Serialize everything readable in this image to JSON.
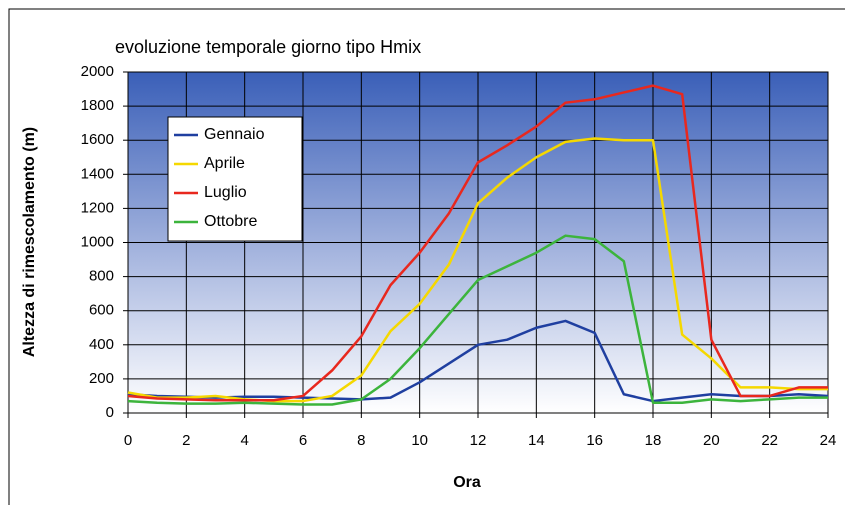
{
  "chart_data": {
    "type": "line",
    "title": "evoluzione temporale giorno tipo Hmix",
    "xlabel": "Ora",
    "ylabel": "Altezza di rimescolamento (m)",
    "x": [
      0,
      1,
      2,
      3,
      4,
      5,
      6,
      7,
      8,
      9,
      10,
      11,
      12,
      13,
      14,
      15,
      16,
      17,
      18,
      19,
      20,
      21,
      22,
      23,
      24
    ],
    "series": [
      {
        "name": "Gennaio",
        "color": "#1f3fa0",
        "values": [
          110,
          100,
          95,
          90,
          95,
          95,
          90,
          85,
          80,
          90,
          180,
          290,
          400,
          430,
          500,
          540,
          470,
          110,
          70,
          90,
          110,
          100,
          100,
          110,
          100
        ]
      },
      {
        "name": "Aprile",
        "color": "#f5d800",
        "values": [
          120,
          90,
          90,
          100,
          80,
          70,
          70,
          100,
          220,
          480,
          640,
          870,
          1230,
          1380,
          1500,
          1590,
          1610,
          1600,
          1600,
          460,
          320,
          150,
          150,
          140,
          140
        ]
      },
      {
        "name": "Luglio",
        "color": "#e8281e",
        "values": [
          100,
          85,
          80,
          75,
          75,
          75,
          100,
          250,
          450,
          750,
          940,
          1170,
          1470,
          1570,
          1680,
          1820,
          1840,
          1880,
          1920,
          1870,
          430,
          100,
          100,
          150,
          150
        ]
      },
      {
        "name": "Ottobre",
        "color": "#3cb43c",
        "values": [
          70,
          60,
          55,
          55,
          60,
          55,
          50,
          50,
          80,
          200,
          380,
          580,
          780,
          860,
          940,
          1040,
          1020,
          890,
          60,
          60,
          80,
          70,
          80,
          90,
          90
        ]
      }
    ],
    "xlim": [
      0,
      24
    ],
    "xticks": [
      0,
      2,
      4,
      6,
      8,
      10,
      12,
      14,
      16,
      18,
      20,
      22,
      24
    ],
    "ylim": [
      0,
      2000
    ],
    "yticks": [
      0,
      200,
      400,
      600,
      800,
      1000,
      1200,
      1400,
      1600,
      1800,
      2000
    ],
    "grid": true,
    "legend": "upper left"
  }
}
